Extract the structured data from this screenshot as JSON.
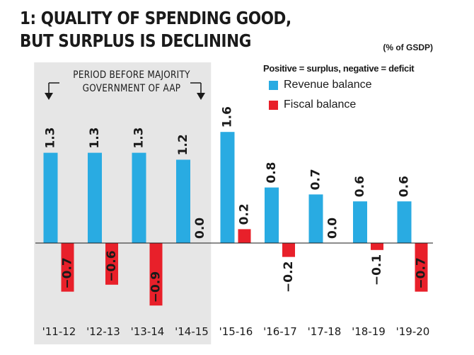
{
  "title": "1: QUALITY OF SPENDING GOOD, BUT SURPLUS IS DECLINING",
  "unit_note": "(% of GSDP)",
  "legend_note": "Positive = surplus, negative = deficit",
  "period_note": {
    "line1": "PERIOD BEFORE MAJORITY",
    "line2": "GOVERNMENT OF AAP"
  },
  "colors": {
    "revenue": "#29abe2",
    "fiscal": "#e8202a",
    "shade": "#e6e6e6"
  },
  "chart_data": {
    "type": "bar",
    "title": "1: QUALITY OF SPENDING GOOD, BUT SURPLUS IS DECLINING",
    "ylabel": "(% of GSDP)",
    "categories": [
      "'11-12",
      "'12-13",
      "'13-14",
      "'14-15",
      "'15-16",
      "'16-17",
      "'17-18",
      "'18-19",
      "'19-20"
    ],
    "series": [
      {
        "name": "Revenue balance",
        "values": [
          1.3,
          1.3,
          1.3,
          1.2,
          1.6,
          0.8,
          0.7,
          0.6,
          0.6
        ],
        "labels": [
          "1.3",
          "1.3",
          "1.3",
          "1.2",
          "1.6",
          "0.8",
          "0.7",
          "0.6",
          "0.6"
        ]
      },
      {
        "name": "Fiscal balance",
        "values": [
          -0.7,
          -0.6,
          -0.9,
          0.0,
          0.2,
          -0.2,
          0.0,
          -0.1,
          -0.7
        ],
        "labels": [
          "−0.7",
          "−0.6",
          "−0.9",
          "0.0",
          "0.2",
          "−0.2",
          "0.0",
          "−0.1",
          "−0.7"
        ]
      }
    ],
    "ylim": [
      -1.0,
      1.8
    ],
    "highlighted_period": [
      "'11-12",
      "'14-15"
    ],
    "legend_position": "top-right",
    "grid": false
  }
}
